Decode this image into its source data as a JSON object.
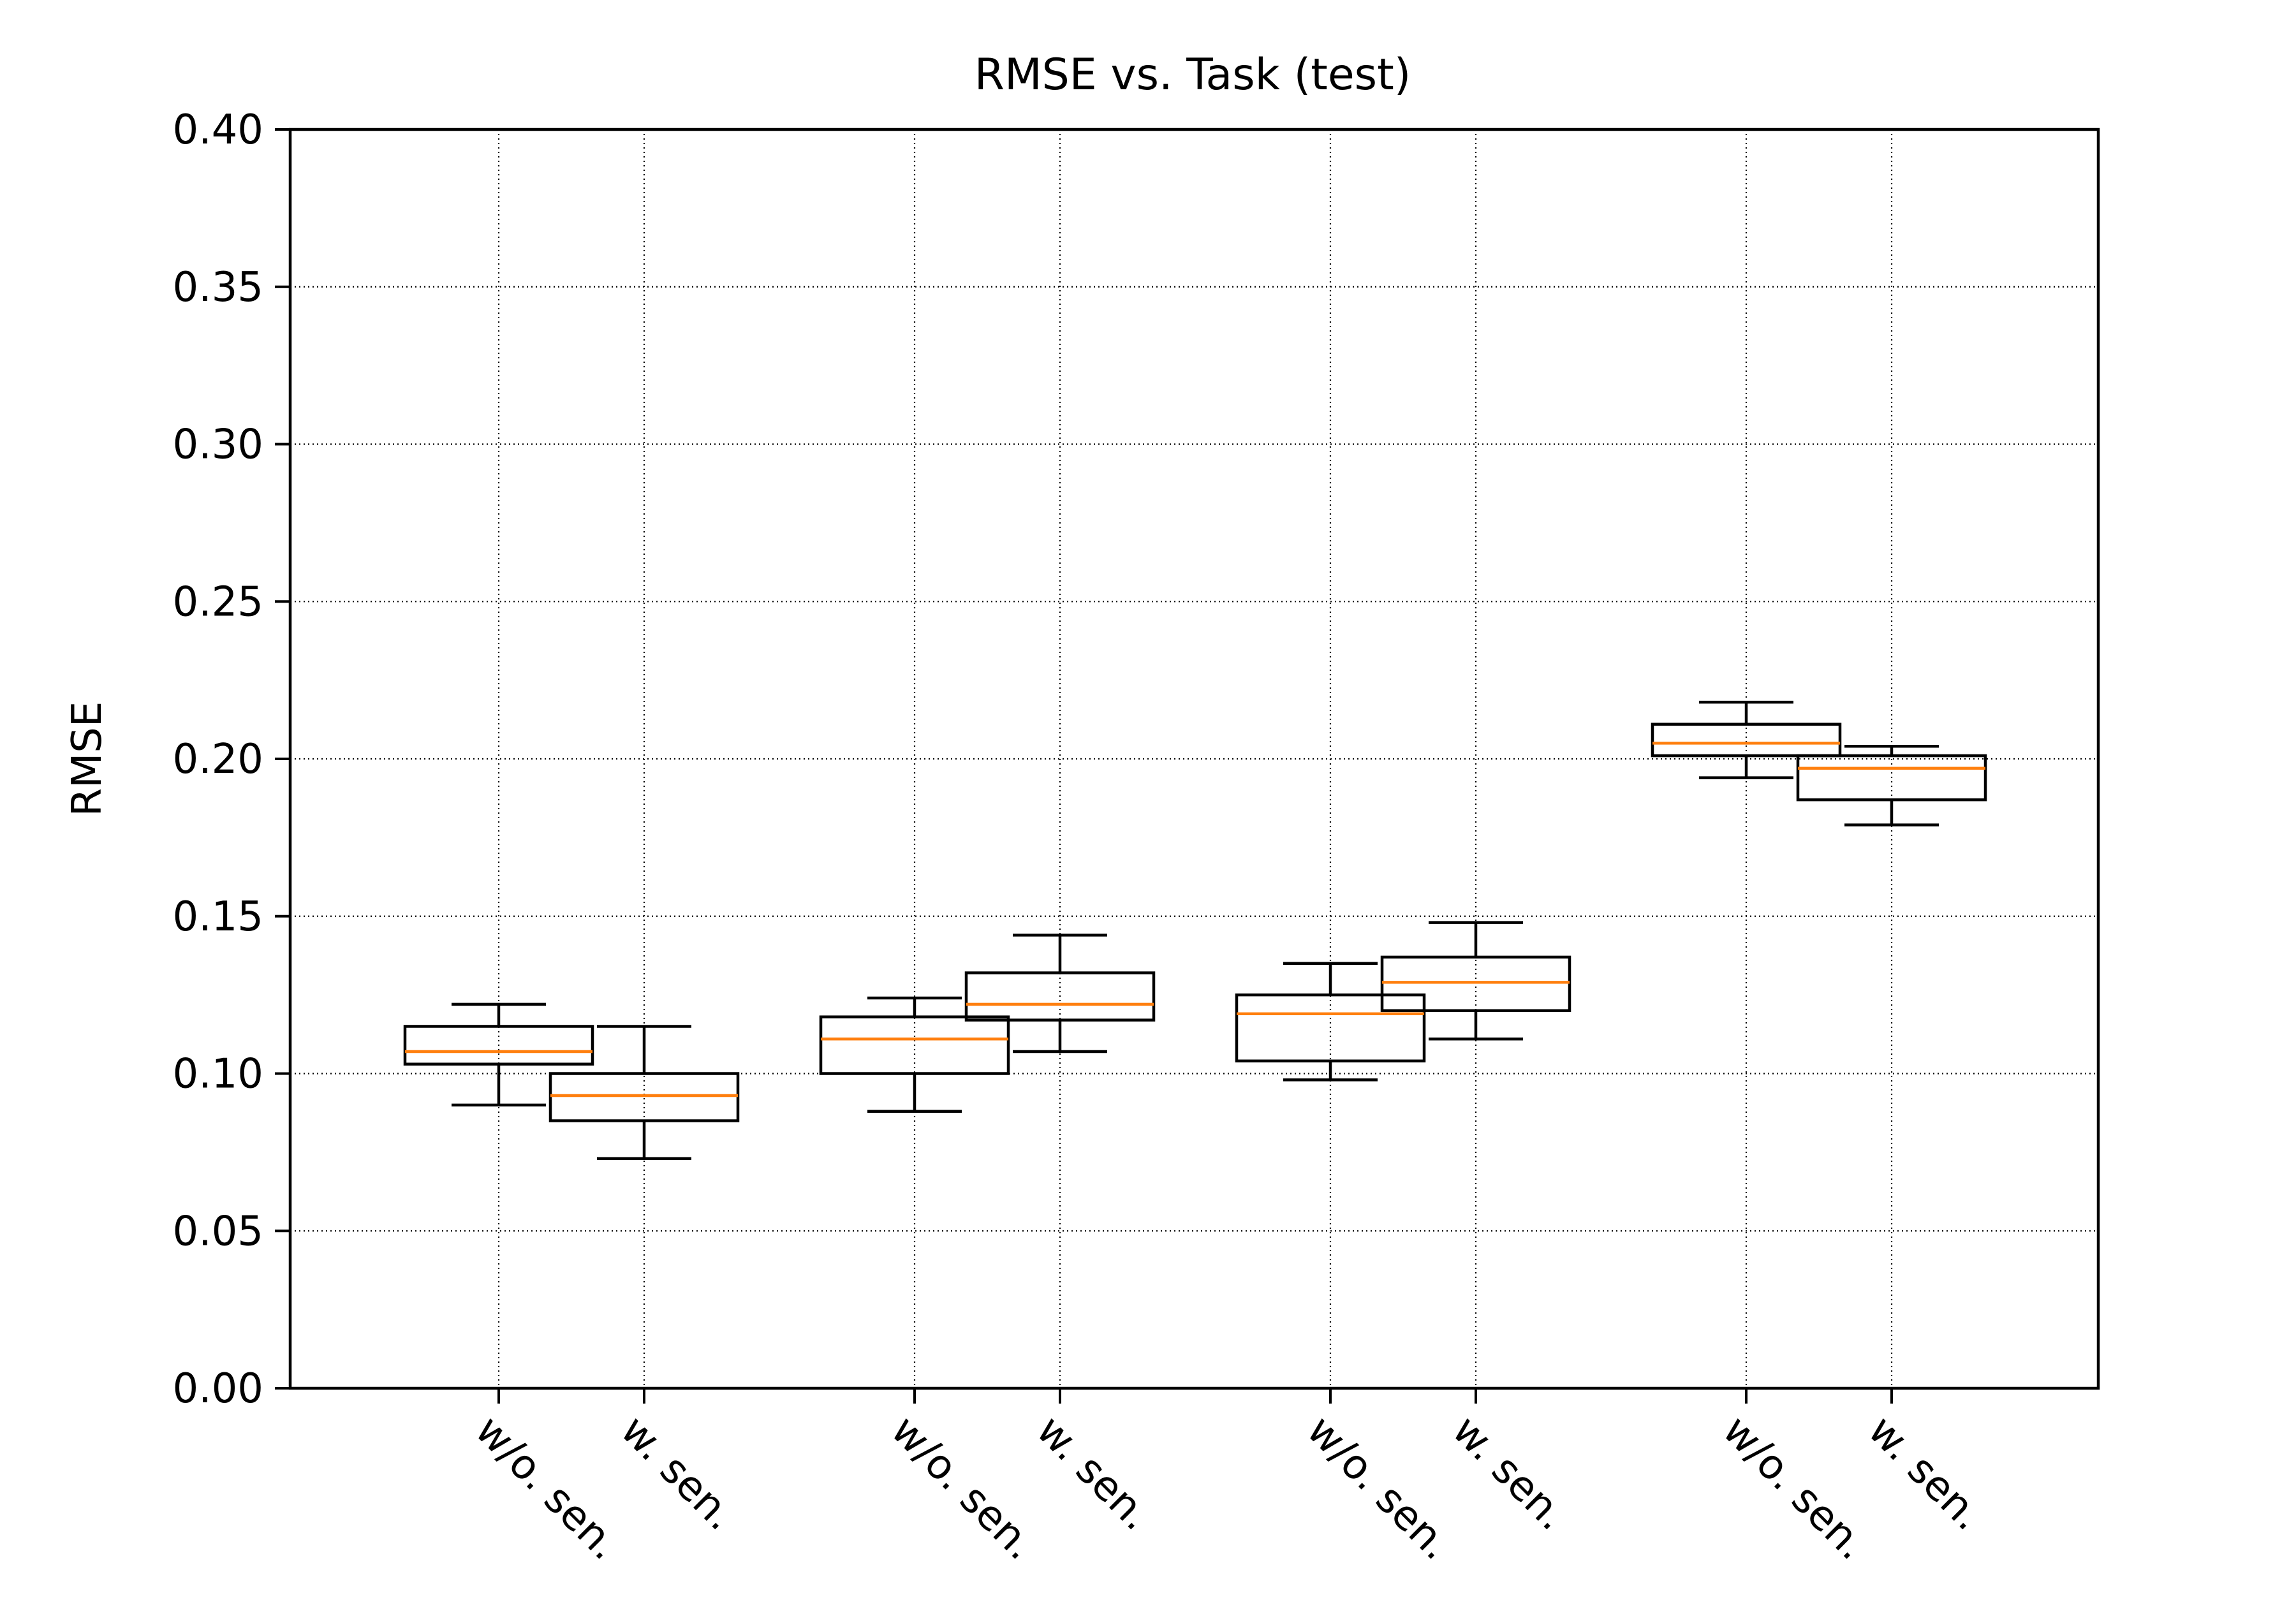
{
  "chart_data": {
    "type": "boxplot",
    "title": "RMSE vs. Task (test)",
    "xlabel": "",
    "ylabel": "RMSE",
    "ylim": [
      0,
      0.4
    ],
    "yticks": [
      "0.00",
      "0.05",
      "0.10",
      "0.15",
      "0.20",
      "0.25",
      "0.30",
      "0.35",
      "0.40"
    ],
    "grid": true,
    "colors": {
      "box": "#000000",
      "median": "#ff7f0e",
      "grid": "#000000"
    },
    "boxes": [
      {
        "label": "w/o. sen.",
        "whisker_low": 0.09,
        "q1": 0.103,
        "median": 0.107,
        "q3": 0.115,
        "whisker_high": 0.122
      },
      {
        "label": "w. sen.",
        "whisker_low": 0.073,
        "q1": 0.085,
        "median": 0.093,
        "q3": 0.1,
        "whisker_high": 0.115
      },
      {
        "label": "w/o. sen.",
        "whisker_low": 0.088,
        "q1": 0.1,
        "median": 0.111,
        "q3": 0.118,
        "whisker_high": 0.124
      },
      {
        "label": "w. sen.",
        "whisker_low": 0.107,
        "q1": 0.117,
        "median": 0.122,
        "q3": 0.132,
        "whisker_high": 0.144
      },
      {
        "label": "w/o. sen.",
        "whisker_low": 0.098,
        "q1": 0.104,
        "median": 0.119,
        "q3": 0.125,
        "whisker_high": 0.135
      },
      {
        "label": "w. sen.",
        "whisker_low": 0.111,
        "q1": 0.12,
        "median": 0.129,
        "q3": 0.137,
        "whisker_high": 0.148
      },
      {
        "label": "w/o. sen.",
        "whisker_low": 0.194,
        "q1": 0.201,
        "median": 0.205,
        "q3": 0.211,
        "whisker_high": 0.218
      },
      {
        "label": "w. sen.",
        "whisker_low": 0.179,
        "q1": 0.187,
        "median": 0.197,
        "q3": 0.201,
        "whisker_high": 0.204
      }
    ]
  }
}
